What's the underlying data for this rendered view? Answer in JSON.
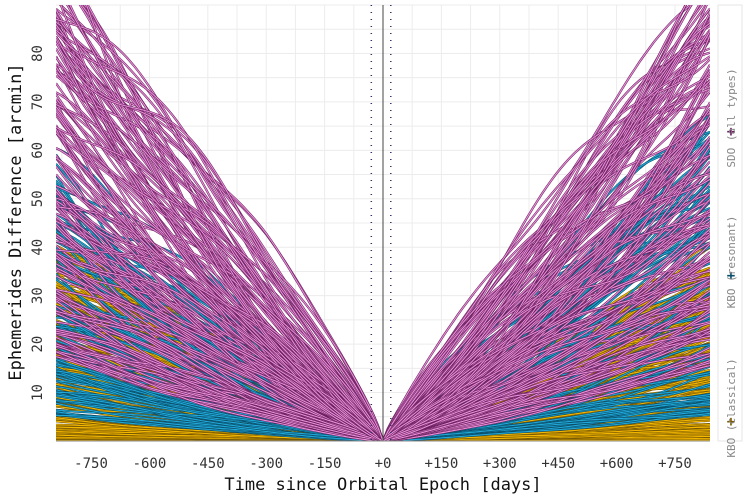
{
  "chart_data": {
    "type": "line",
    "title": "",
    "xlabel": "Time since Orbital Epoch [days]",
    "ylabel": "Ephemerides Difference [arcmin]",
    "xlim": [
      -840,
      840
    ],
    "ylim": [
      0,
      90
    ],
    "x_ticks": [
      -750,
      -600,
      -450,
      -300,
      -150,
      0,
      150,
      300,
      450,
      600,
      750
    ],
    "x_tick_labels": [
      "-750",
      "-600",
      "-450",
      "-300",
      "-150",
      "+0",
      "+150",
      "+300",
      "+450",
      "+600",
      "+750"
    ],
    "y_ticks": [
      10,
      20,
      30,
      40,
      50,
      60,
      70,
      80
    ],
    "y_tick_labels": [
      "10",
      "20",
      "30",
      "40",
      "50",
      "60",
      "70",
      "80"
    ],
    "grid": true,
    "legend_position": "right",
    "series": [
      {
        "name": "KBO (classical)",
        "symbol": "+",
        "color": "#f5b800",
        "edge": "#7a5a00",
        "count": 220,
        "left_end_range": [
          0,
          40
        ],
        "right_end_range": [
          0,
          38
        ]
      },
      {
        "name": "KBO (resonant)",
        "symbol": "+",
        "color": "#20a8d8",
        "edge": "#0a4f6b",
        "count": 110,
        "left_end_range": [
          5,
          55
        ],
        "right_end_range": [
          5,
          65
        ]
      },
      {
        "name": "SDO (all types)",
        "symbol": "+",
        "color": "#e890d8",
        "edge": "#6a1f5e",
        "count": 150,
        "left_end_range": [
          15,
          95
        ],
        "right_end_range": [
          15,
          95
        ]
      }
    ],
    "markers": {
      "vertical_line_x": 0,
      "dotted_lines_x": [
        -30,
        20
      ]
    }
  }
}
